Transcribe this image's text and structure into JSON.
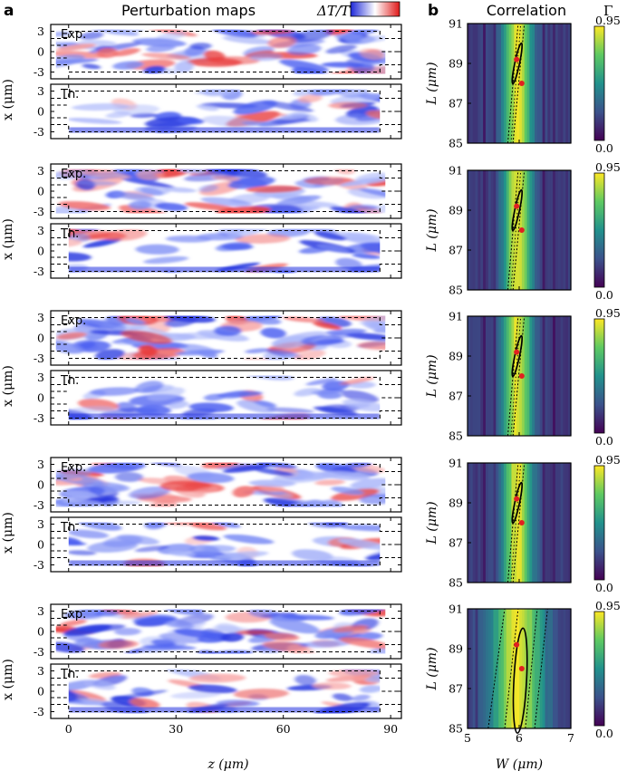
{
  "figure": {
    "panel_a": {
      "letter": "a",
      "title": "Perturbation maps",
      "colorbar_label": "ΔT/T",
      "exp_label": "Exp.",
      "th_label": "Th.",
      "ylabel": "x (μm)",
      "xlabel": "z (μm)",
      "yticks": [
        "3",
        "0",
        "-3"
      ],
      "xticks": [
        "0",
        "30",
        "60",
        "90"
      ]
    },
    "panel_b": {
      "letter": "b",
      "title": "Correlation",
      "colorbar_label": "Γ",
      "ylabel": "L (μm)",
      "xlabel": "W (μm)",
      "yticks": [
        "91",
        "89",
        "87",
        "85"
      ],
      "xticks": [
        "5",
        "6",
        "7"
      ],
      "colorbar_ticks": [
        "0.95",
        "0.0"
      ]
    }
  },
  "chart_data": [
    {
      "type": "heatmap",
      "panel": "a",
      "title": "Perturbation maps",
      "xlabel": "z (μm)",
      "ylabel": "x (μm)",
      "xlim": [
        -5,
        93
      ],
      "ylim": [
        -4,
        4
      ],
      "xticks": [
        0,
        30,
        60,
        90
      ],
      "yticks": [
        3,
        0,
        -3
      ],
      "colormap": [
        "#1e28d8",
        "#ffffff",
        "#e01818"
      ],
      "colorbar_label": "ΔT/T",
      "rows": 5,
      "maps_per_row": [
        "Exp.",
        "Th."
      ],
      "channel_x_range": [
        -3,
        3
      ],
      "channel_z_range": [
        0,
        87
      ]
    },
    {
      "type": "heatmap",
      "panel": "b",
      "title": "Correlation",
      "xlabel": "W (μm)",
      "ylabel": "L (μm)",
      "xlim": [
        5,
        7
      ],
      "ylim": [
        85,
        91
      ],
      "xticks": [
        5,
        6,
        7
      ],
      "yticks": [
        85,
        87,
        89,
        91
      ],
      "colorbar_label": "Γ",
      "colorbar_range": [
        0.0,
        0.95
      ],
      "colormap": "viridis",
      "rows": 5,
      "best_fit_points": [
        {
          "W": 5.95,
          "L": 89.2
        },
        {
          "W": 6.05,
          "L": 88.0
        }
      ]
    }
  ]
}
